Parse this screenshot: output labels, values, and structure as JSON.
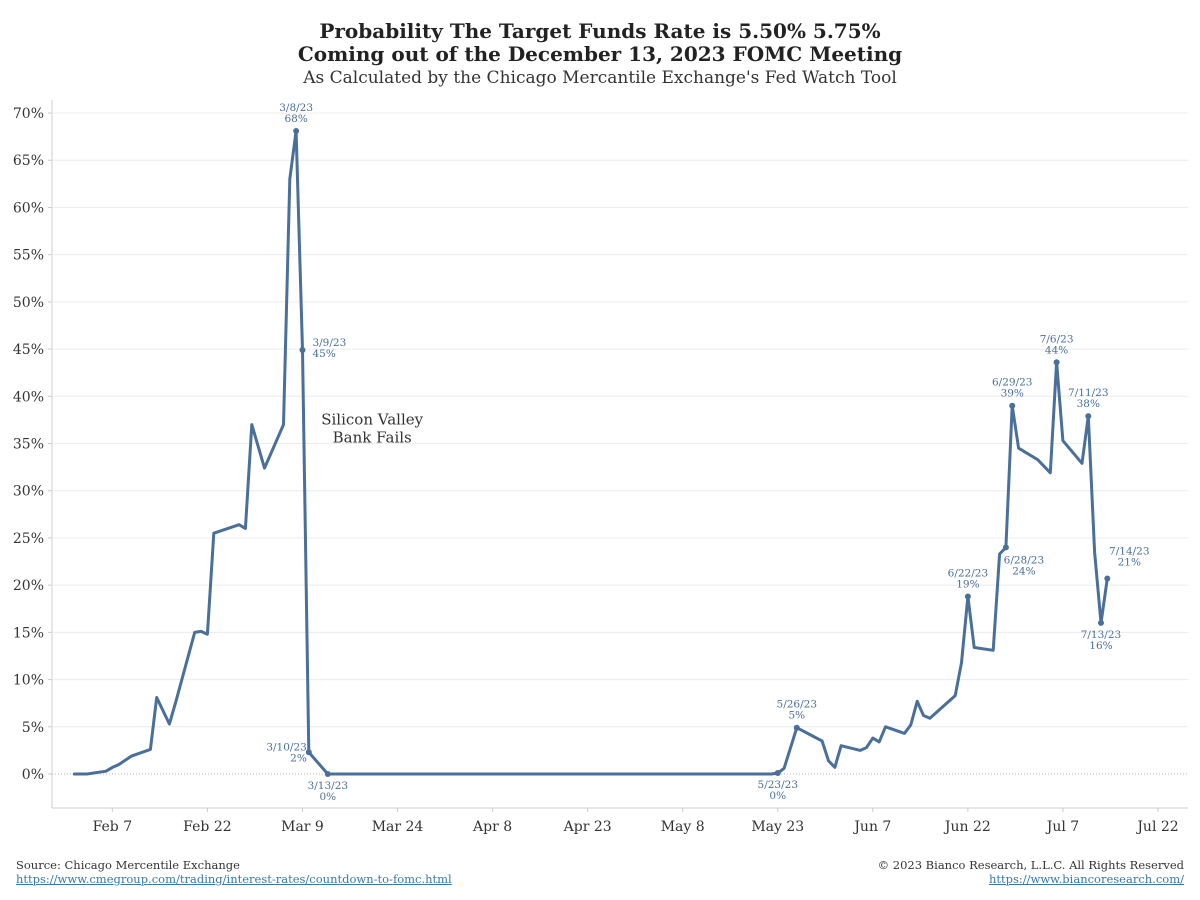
{
  "title": {
    "line1": "Probability The Target Funds Rate is 5.50% 5.75%",
    "line2": "Coming out of the December 13, 2023 FOMC Meeting",
    "line3": "As Calculated by the Chicago Mercantile Exchange's Fed Watch Tool"
  },
  "footer": {
    "source": "Source: Chicago Mercentile Exchange",
    "source_url": "https://www.cmegroup.com/trading/interest-rates/countdown-to-fomc.html",
    "copyright": "© 2023 Bianco Research, L.L.C. All Rights Reserved",
    "site_url": "https://www.biancoresearch.com/"
  },
  "colors": {
    "line": "#4a6f99",
    "grid": "#ececec",
    "axis": "#cccccc"
  },
  "chart_data": {
    "type": "line",
    "x_start": "2023-01-31",
    "x_end": "2023-07-22",
    "ylim": [
      0,
      70
    ],
    "yticks": [
      0,
      5,
      10,
      15,
      20,
      25,
      30,
      35,
      40,
      45,
      50,
      55,
      60,
      65,
      70
    ],
    "ytick_labels": [
      "0%",
      "5%",
      "10%",
      "15%",
      "20%",
      "25%",
      "30%",
      "35%",
      "40%",
      "45%",
      "50%",
      "55%",
      "60%",
      "65%",
      "70%"
    ],
    "xticks": [
      {
        "date": "2023-02-07",
        "label": "Feb 7"
      },
      {
        "date": "2023-02-22",
        "label": "Feb 22"
      },
      {
        "date": "2023-03-09",
        "label": "Mar 9"
      },
      {
        "date": "2023-03-24",
        "label": "Mar 24"
      },
      {
        "date": "2023-04-08",
        "label": "Apr 8"
      },
      {
        "date": "2023-04-23",
        "label": "Apr 23"
      },
      {
        "date": "2023-05-08",
        "label": "May 8"
      },
      {
        "date": "2023-05-23",
        "label": "May 23"
      },
      {
        "date": "2023-06-07",
        "label": "Jun 7"
      },
      {
        "date": "2023-06-22",
        "label": "Jun 22"
      },
      {
        "date": "2023-07-07",
        "label": "Jul 7"
      },
      {
        "date": "2023-07-22",
        "label": "Jul 22"
      }
    ],
    "series": [
      {
        "points": [
          [
            "2023-02-01",
            0.0
          ],
          [
            "2023-02-03",
            0.0
          ],
          [
            "2023-02-06",
            0.3
          ],
          [
            "2023-02-07",
            0.7
          ],
          [
            "2023-02-08",
            1.0
          ],
          [
            "2023-02-10",
            1.9
          ],
          [
            "2023-02-13",
            2.6
          ],
          [
            "2023-02-14",
            8.1
          ],
          [
            "2023-02-16",
            5.3
          ],
          [
            "2023-02-17",
            7.6
          ],
          [
            "2023-02-20",
            15.0
          ],
          [
            "2023-02-21",
            15.1
          ],
          [
            "2023-02-22",
            14.8
          ],
          [
            "2023-02-23",
            25.5
          ],
          [
            "2023-02-27",
            26.4
          ],
          [
            "2023-02-28",
            26.0
          ],
          [
            "2023-03-01",
            37.0
          ],
          [
            "2023-03-03",
            32.4
          ],
          [
            "2023-03-06",
            37.0
          ],
          [
            "2023-03-07",
            63.0
          ],
          [
            "2023-03-08",
            68.1
          ],
          [
            "2023-03-09",
            44.9
          ],
          [
            "2023-03-10",
            2.3
          ],
          [
            "2023-03-13",
            0.0
          ],
          [
            "2023-05-22",
            0.0
          ],
          [
            "2023-05-23",
            0.1
          ],
          [
            "2023-05-24",
            0.6
          ],
          [
            "2023-05-26",
            4.9
          ],
          [
            "2023-05-30",
            3.5
          ],
          [
            "2023-05-31",
            1.4
          ],
          [
            "2023-06-01",
            0.7
          ],
          [
            "2023-06-02",
            3.0
          ],
          [
            "2023-06-05",
            2.5
          ],
          [
            "2023-06-06",
            2.8
          ],
          [
            "2023-06-07",
            3.8
          ],
          [
            "2023-06-08",
            3.4
          ],
          [
            "2023-06-09",
            5.0
          ],
          [
            "2023-06-12",
            4.3
          ],
          [
            "2023-06-13",
            5.2
          ],
          [
            "2023-06-14",
            7.7
          ],
          [
            "2023-06-15",
            6.2
          ],
          [
            "2023-06-16",
            5.9
          ],
          [
            "2023-06-20",
            8.3
          ],
          [
            "2023-06-21",
            11.8
          ],
          [
            "2023-06-22",
            18.8
          ],
          [
            "2023-06-23",
            13.4
          ],
          [
            "2023-06-26",
            13.1
          ],
          [
            "2023-06-27",
            23.3
          ],
          [
            "2023-06-28",
            24.0
          ],
          [
            "2023-06-29",
            39.0
          ],
          [
            "2023-06-30",
            34.5
          ],
          [
            "2023-07-03",
            33.3
          ],
          [
            "2023-07-05",
            31.9
          ],
          [
            "2023-07-06",
            43.6
          ],
          [
            "2023-07-07",
            35.3
          ],
          [
            "2023-07-10",
            32.9
          ],
          [
            "2023-07-11",
            37.9
          ],
          [
            "2023-07-12",
            23.5
          ],
          [
            "2023-07-13",
            16.0
          ],
          [
            "2023-07-14",
            20.7
          ]
        ]
      }
    ],
    "annotations": [
      {
        "date": "2023-03-08",
        "value": 68.1,
        "lines": [
          "3/8/23",
          "68%"
        ],
        "pos": "above"
      },
      {
        "date": "2023-03-09",
        "value": 44.9,
        "lines": [
          "3/9/23",
          "45%"
        ],
        "pos": "right"
      },
      {
        "date": "2023-03-10",
        "value": 2.3,
        "lines": [
          "3/10/23",
          "2%"
        ],
        "pos": "left"
      },
      {
        "date": "2023-03-13",
        "value": 0.0,
        "lines": [
          "3/13/23",
          "0%"
        ],
        "pos": "below"
      },
      {
        "date": "2023-05-23",
        "value": 0.1,
        "lines": [
          "5/23/23",
          "0%"
        ],
        "pos": "below"
      },
      {
        "date": "2023-05-26",
        "value": 4.9,
        "lines": [
          "5/26/23",
          "5%"
        ],
        "pos": "above"
      },
      {
        "date": "2023-06-22",
        "value": 18.8,
        "lines": [
          "6/22/23",
          "19%"
        ],
        "pos": "above"
      },
      {
        "date": "2023-06-28",
        "value": 24.0,
        "lines": [
          "6/28/23",
          "24%"
        ],
        "pos": "below-right"
      },
      {
        "date": "2023-06-29",
        "value": 39.0,
        "lines": [
          "6/29/23",
          "39%"
        ],
        "pos": "above"
      },
      {
        "date": "2023-07-06",
        "value": 43.6,
        "lines": [
          "7/6/23",
          "44%"
        ],
        "pos": "above"
      },
      {
        "date": "2023-07-11",
        "value": 37.9,
        "lines": [
          "7/11/23",
          "38%"
        ],
        "pos": "above"
      },
      {
        "date": "2023-07-13",
        "value": 16.0,
        "lines": [
          "7/13/23",
          "16%"
        ],
        "pos": "below"
      },
      {
        "date": "2023-07-14",
        "value": 20.7,
        "lines": [
          "7/14/23",
          "21%"
        ],
        "pos": "above-right"
      }
    ],
    "text_note": {
      "lines": [
        "Silicon Valley",
        "Bank Fails"
      ],
      "date": "2023-03-20",
      "value": 37.0
    }
  }
}
